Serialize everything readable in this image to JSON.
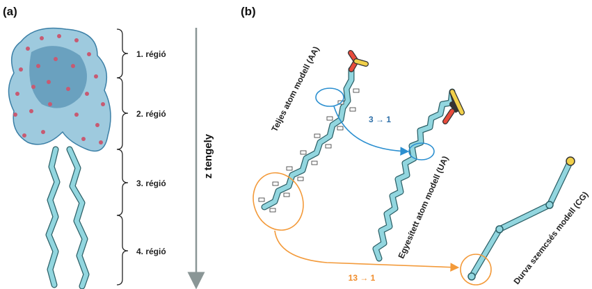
{
  "panels": [
    {
      "label": "(a)",
      "regions": [
        "1. régió",
        "2. régió",
        "3. régió",
        "4. régió"
      ],
      "axis_label": "z tengely"
    },
    {
      "label": "(b)",
      "models": [
        "Teljes atom modell (AA)",
        "Egyesített atom modell (UA)",
        "Durva szemcsés modell (CG)"
      ],
      "mappings": [
        "3 → 1",
        "13 → 1"
      ]
    }
  ]
}
